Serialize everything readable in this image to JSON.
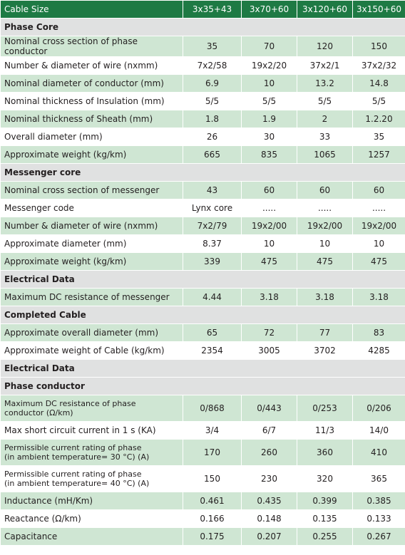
{
  "header": {
    "label": "Cable Size",
    "columns": [
      "3x35+43",
      "3x70+60",
      "3x120+60",
      "3x150+60"
    ]
  },
  "rows": [
    {
      "type": "section",
      "label": "Phase Core"
    },
    {
      "type": "row",
      "shade": "g",
      "label": "Nominal cross section of phase conductor",
      "values": [
        "35",
        "70",
        "120",
        "150"
      ]
    },
    {
      "type": "row",
      "shade": "w",
      "label": "Number & diameter of wire (nxmm)",
      "values": [
        "7x2/58",
        "19x2/20",
        "37x2/1",
        "37x2/32"
      ]
    },
    {
      "type": "row",
      "shade": "g",
      "label": "Nominal diameter of conductor (mm)",
      "values": [
        "6.9",
        "10",
        "13.2",
        "14.8"
      ]
    },
    {
      "type": "row",
      "shade": "w",
      "label": "Nominal thickness of Insulation (mm)",
      "values": [
        "5/5",
        "5/5",
        "5/5",
        "5/5"
      ]
    },
    {
      "type": "row",
      "shade": "g",
      "label": "Nominal thickness of Sheath (mm)",
      "values": [
        "1.8",
        "1.9",
        "2",
        "1.2.20"
      ]
    },
    {
      "type": "row",
      "shade": "w",
      "label": "Overall diameter (mm)",
      "values": [
        "26",
        "30",
        "33",
        "35"
      ]
    },
    {
      "type": "row",
      "shade": "g",
      "label": "Approximate weight (kg/km)",
      "values": [
        "665",
        "835",
        "1065",
        "1257"
      ]
    },
    {
      "type": "section",
      "label": "Messenger core"
    },
    {
      "type": "row",
      "shade": "g",
      "label": "Nominal cross section of messenger",
      "values": [
        "43",
        "60",
        "60",
        "60"
      ]
    },
    {
      "type": "row",
      "shade": "w",
      "label": "Messenger code",
      "values": [
        "Lynx core",
        ".....",
        ".....",
        "....."
      ]
    },
    {
      "type": "row",
      "shade": "g",
      "label": "Number & diameter of wire (nxmm)",
      "values": [
        "7x2/79",
        "19x2/00",
        "19x2/00",
        "19x2/00"
      ]
    },
    {
      "type": "row",
      "shade": "w",
      "label": "Approximate diameter (mm)",
      "values": [
        "8.37",
        "10",
        "10",
        "10"
      ]
    },
    {
      "type": "row",
      "shade": "g",
      "label": "Approximate weight (kg/km)",
      "values": [
        "339",
        "475",
        "475",
        "475"
      ]
    },
    {
      "type": "section",
      "label": "Electrical Data"
    },
    {
      "type": "row",
      "shade": "g",
      "label": "Maximum DC resistance of messenger",
      "values": [
        "4.44",
        "3.18",
        "3.18",
        "3.18"
      ]
    },
    {
      "type": "section",
      "label": "Completed Cable"
    },
    {
      "type": "row",
      "shade": "g",
      "label": "Approximate overall diameter (mm)",
      "values": [
        "65",
        "72",
        "77",
        "83"
      ]
    },
    {
      "type": "row",
      "shade": "w",
      "label": "Approximate weight of Cable (kg/km)",
      "values": [
        "2354",
        "3005",
        "3702",
        "4285"
      ]
    },
    {
      "type": "section",
      "label": "Electrical Data"
    },
    {
      "type": "section",
      "label": "Phase conductor"
    },
    {
      "type": "row",
      "shade": "g",
      "tall": true,
      "label": [
        "Maximum DC resistance of phase",
        "conductor (Ω/km)"
      ],
      "values": [
        "0/868",
        "0/443",
        "0/253",
        "0/206"
      ]
    },
    {
      "type": "row",
      "shade": "w",
      "label": "Max short circuit current in 1 s (KA)",
      "values": [
        "3/4",
        "6/7",
        "11/3",
        "14/0"
      ]
    },
    {
      "type": "row",
      "shade": "g",
      "tall": true,
      "label": [
        "Permissible current rating of phase",
        "(in ambient temperature= 30 °C) (A)"
      ],
      "values": [
        "170",
        "260",
        "360",
        "410"
      ]
    },
    {
      "type": "row",
      "shade": "w",
      "tall": true,
      "label": [
        "Permissible current rating of phase",
        "(in ambient temperature= 40 °C) (A)"
      ],
      "values": [
        "150",
        "230",
        "320",
        "365"
      ]
    },
    {
      "type": "row",
      "shade": "g",
      "label": "Inductance (mH/Km)",
      "values": [
        "0.461",
        "0.435",
        "0.399",
        "0.385"
      ]
    },
    {
      "type": "row",
      "shade": "w",
      "label": "Reactance (Ω/km)",
      "values": [
        "0.166",
        "0.148",
        "0.135",
        "0.133"
      ]
    },
    {
      "type": "row",
      "shade": "g",
      "label": "Capacitance",
      "values": [
        "0.175",
        "0.207",
        "0.255",
        "0.267"
      ]
    }
  ]
}
